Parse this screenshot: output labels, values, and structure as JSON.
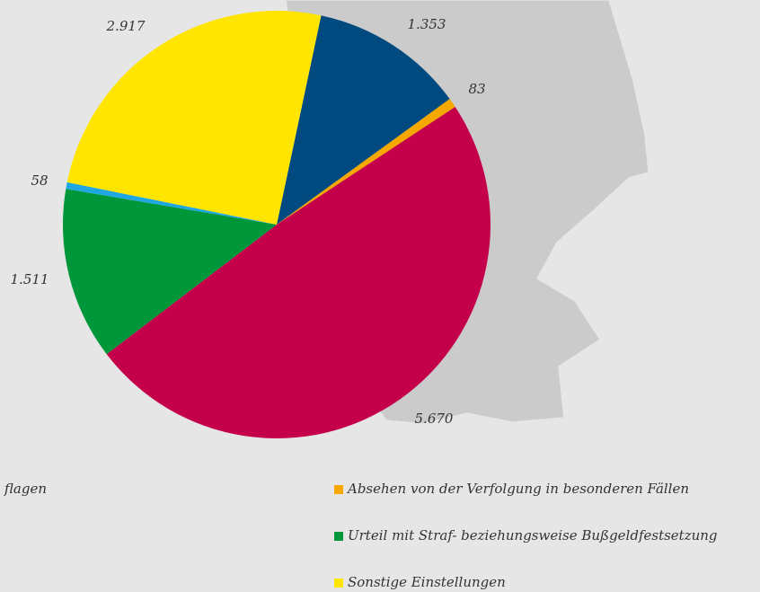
{
  "chart_data": {
    "type": "pie",
    "values": [
      1353,
      83,
      5670,
      1511,
      58,
      2917
    ],
    "value_labels": [
      "1.353",
      "83",
      "5.670",
      "1.511",
      "58",
      "2.917"
    ],
    "colors": [
      "#004a7f",
      "#f5a800",
      "#c4004a",
      "#00963a",
      "#1ea7e1",
      "#ffe500"
    ],
    "labels": [
      "flagen",
      "Absehen von der Verfolgung in besonderen Fällen",
      null,
      "Urteil mit Straf- beziehungsweise Bußgeldfestsetzung",
      null,
      "Sonstige Einstellungen"
    ]
  }
}
